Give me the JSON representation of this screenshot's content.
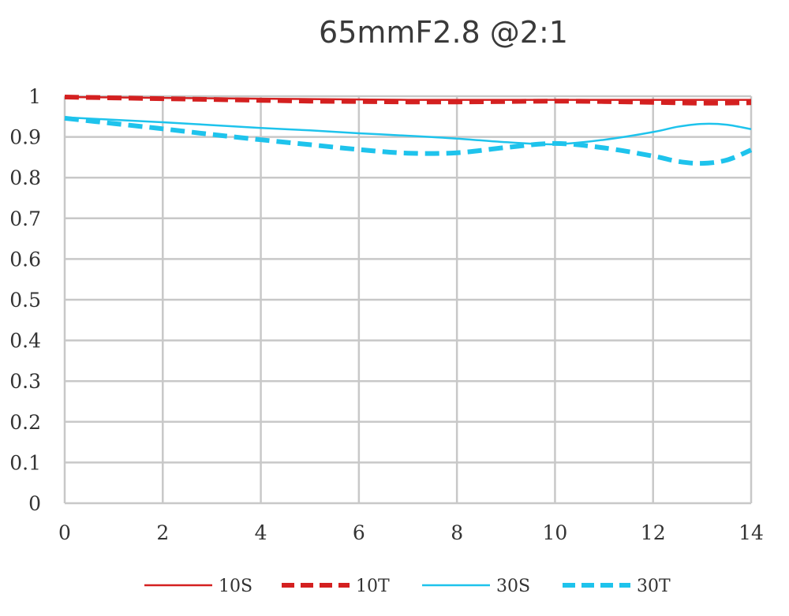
{
  "chart_data": {
    "type": "line",
    "title": "65mmF2.8 @2:1",
    "xlabel": "",
    "ylabel": "",
    "xlim": [
      0,
      14
    ],
    "ylim": [
      0,
      1
    ],
    "xticks": [
      0,
      2,
      4,
      6,
      8,
      10,
      12,
      14
    ],
    "xtick_labels": [
      "0",
      "2",
      "4",
      "6",
      "8",
      "10",
      "12",
      "14"
    ],
    "yticks": [
      0,
      0.1,
      0.2,
      0.3,
      0.4,
      0.5,
      0.6,
      0.7,
      0.8,
      0.9,
      1
    ],
    "ytick_labels": [
      "0",
      "0.1",
      "0.2",
      "0.3",
      "0.4",
      "0.5",
      "0.6",
      "0.7",
      "0.8",
      "0.9",
      "1"
    ],
    "grid": true,
    "legend_position": "bottom",
    "series": [
      {
        "name": "10S",
        "color": "#d42020",
        "dash": "solid",
        "x": [
          0,
          1,
          2,
          3,
          4,
          5,
          6,
          7,
          8,
          9,
          10,
          11,
          12,
          13,
          14
        ],
        "y": [
          0.998,
          0.997,
          0.996,
          0.995,
          0.994,
          0.993,
          0.992,
          0.991,
          0.991,
          0.991,
          0.991,
          0.991,
          0.991,
          0.991,
          0.991
        ]
      },
      {
        "name": "10T",
        "color": "#d42020",
        "dash": "dashed",
        "x": [
          0,
          1,
          2,
          3,
          4,
          5,
          6,
          7,
          8,
          9,
          10,
          11,
          12,
          13,
          14
        ],
        "y": [
          0.998,
          0.996,
          0.994,
          0.992,
          0.99,
          0.988,
          0.987,
          0.986,
          0.986,
          0.987,
          0.988,
          0.987,
          0.985,
          0.983,
          0.984
        ]
      },
      {
        "name": "30S",
        "color": "#1ec3ec",
        "dash": "solid",
        "x": [
          0,
          1,
          2,
          3,
          4,
          5,
          6,
          7,
          8,
          9,
          10,
          11,
          12,
          12.5,
          13,
          13.5,
          14
        ],
        "y": [
          0.948,
          0.942,
          0.936,
          0.929,
          0.922,
          0.916,
          0.909,
          0.903,
          0.896,
          0.887,
          0.882,
          0.893,
          0.912,
          0.925,
          0.932,
          0.93,
          0.919
        ]
      },
      {
        "name": "30T",
        "color": "#1ec3ec",
        "dash": "dashed",
        "x": [
          0,
          1,
          2,
          3,
          4,
          5,
          6,
          7,
          8,
          9,
          10,
          11,
          12,
          12.5,
          13,
          13.5,
          14
        ],
        "y": [
          0.946,
          0.933,
          0.92,
          0.906,
          0.893,
          0.881,
          0.869,
          0.86,
          0.861,
          0.874,
          0.884,
          0.873,
          0.853,
          0.84,
          0.835,
          0.843,
          0.868
        ]
      }
    ]
  }
}
